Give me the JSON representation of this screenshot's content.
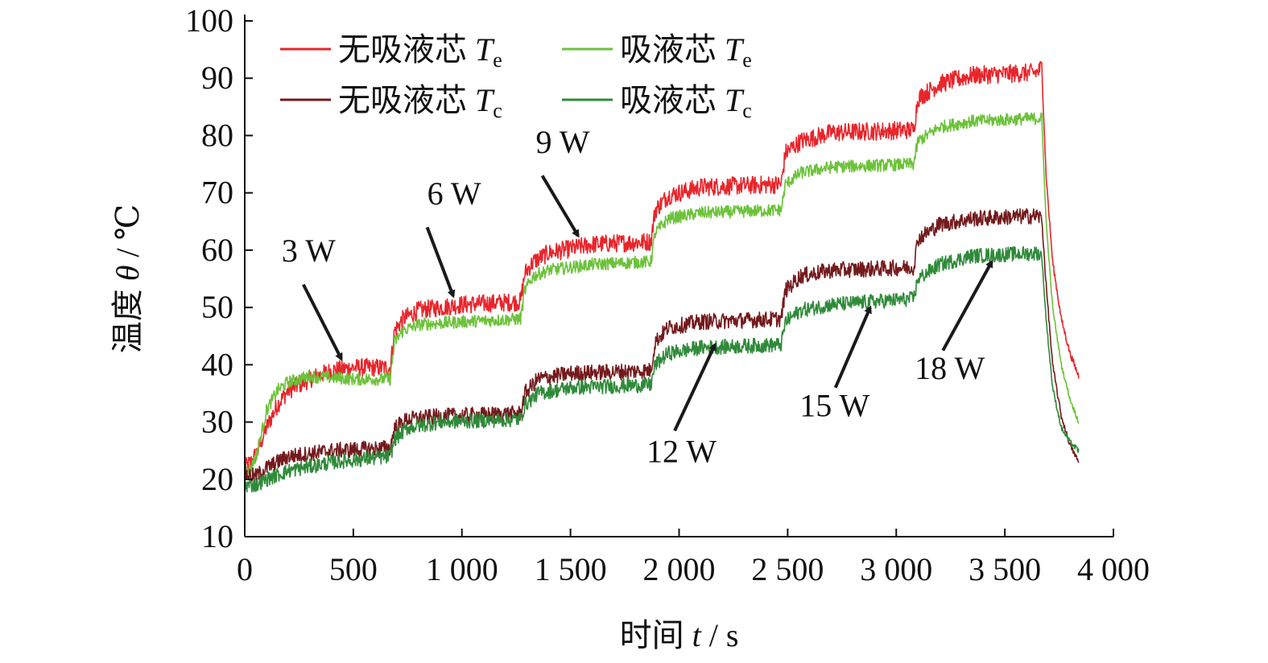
{
  "chart_data": {
    "type": "line",
    "xlabel": {
      "prefix": "时间 ",
      "var": "t",
      "suffix": " / s"
    },
    "ylabel": {
      "prefix": "温度 ",
      "var": "θ",
      "suffix": " / ℃"
    },
    "xlim": [
      0,
      4000
    ],
    "ylim": [
      10,
      100
    ],
    "x_ticks": [
      0,
      500,
      1000,
      1500,
      2000,
      2500,
      3000,
      3500,
      4000
    ],
    "x_tick_labels": [
      "0",
      "500",
      "1 000",
      "1 500",
      "2 000",
      "2 500",
      "3 000",
      "3 500",
      "4 000"
    ],
    "y_ticks": [
      10,
      20,
      30,
      40,
      50,
      60,
      70,
      80,
      90,
      100
    ],
    "y_tick_labels": [
      "10",
      "20",
      "30",
      "40",
      "50",
      "60",
      "70",
      "80",
      "90",
      "100"
    ],
    "grid": false,
    "legend_position": "top-left",
    "series": [
      {
        "name": "无吸液芯 Te",
        "label_text": "无吸液芯 ",
        "label_var": "T",
        "label_sub": "e",
        "color": "#e8252b",
        "noise": 1.6,
        "points": [
          [
            0,
            22
          ],
          [
            30,
            23
          ],
          [
            60,
            25
          ],
          [
            100,
            29
          ],
          [
            150,
            33
          ],
          [
            200,
            35.5
          ],
          [
            300,
            37.5
          ],
          [
            400,
            39
          ],
          [
            500,
            39.5
          ],
          [
            670,
            39.5
          ],
          [
            690,
            46
          ],
          [
            730,
            48
          ],
          [
            800,
            49.5
          ],
          [
            1000,
            50.5
          ],
          [
            1270,
            51
          ],
          [
            1290,
            56
          ],
          [
            1330,
            58
          ],
          [
            1400,
            59.5
          ],
          [
            1600,
            61
          ],
          [
            1870,
            61.5
          ],
          [
            1890,
            67
          ],
          [
            1950,
            69.5
          ],
          [
            2100,
            71
          ],
          [
            2470,
            71.5
          ],
          [
            2490,
            77
          ],
          [
            2560,
            79
          ],
          [
            2700,
            80.5
          ],
          [
            3080,
            81
          ],
          [
            3100,
            86.5
          ],
          [
            3200,
            89
          ],
          [
            3350,
            90.5
          ],
          [
            3650,
            91
          ],
          [
            3670,
            92
          ],
          [
            3690,
            73
          ],
          [
            3720,
            58
          ],
          [
            3760,
            48
          ],
          [
            3800,
            42
          ],
          [
            3840,
            38
          ]
        ]
      },
      {
        "name": "吸液芯 Te",
        "label_text": "吸液芯 ",
        "label_var": "T",
        "label_sub": "e",
        "color": "#6cc23a",
        "noise": 1.1,
        "points": [
          [
            0,
            21
          ],
          [
            30,
            22
          ],
          [
            60,
            25
          ],
          [
            100,
            32
          ],
          [
            150,
            35.5
          ],
          [
            200,
            37
          ],
          [
            300,
            38
          ],
          [
            500,
            37.5
          ],
          [
            670,
            37.5
          ],
          [
            690,
            44
          ],
          [
            730,
            46
          ],
          [
            800,
            47
          ],
          [
            1000,
            47.5
          ],
          [
            1270,
            48
          ],
          [
            1290,
            53
          ],
          [
            1330,
            55.5
          ],
          [
            1400,
            56.5
          ],
          [
            1600,
            57.5
          ],
          [
            1870,
            58
          ],
          [
            1890,
            63
          ],
          [
            1950,
            65.5
          ],
          [
            2100,
            66.5
          ],
          [
            2470,
            67
          ],
          [
            2490,
            71.5
          ],
          [
            2560,
            73.5
          ],
          [
            2700,
            74.5
          ],
          [
            3080,
            75
          ],
          [
            3100,
            79
          ],
          [
            3200,
            81.5
          ],
          [
            3350,
            82.5
          ],
          [
            3650,
            83
          ],
          [
            3670,
            83
          ],
          [
            3690,
            65
          ],
          [
            3720,
            50
          ],
          [
            3760,
            40
          ],
          [
            3800,
            34
          ],
          [
            3840,
            30
          ]
        ]
      },
      {
        "name": "无吸液芯 Tc",
        "label_text": "无吸液芯 ",
        "label_var": "T",
        "label_sub": "c",
        "color": "#731a1c",
        "noise": 1.4,
        "points": [
          [
            0,
            21
          ],
          [
            50,
            20.5
          ],
          [
            100,
            22
          ],
          [
            200,
            24
          ],
          [
            400,
            25
          ],
          [
            670,
            25.5
          ],
          [
            690,
            29
          ],
          [
            750,
            30.5
          ],
          [
            900,
            31
          ],
          [
            1270,
            31.5
          ],
          [
            1290,
            35
          ],
          [
            1350,
            37.5
          ],
          [
            1500,
            38.5
          ],
          [
            1870,
            39
          ],
          [
            1890,
            44
          ],
          [
            1950,
            46.5
          ],
          [
            2100,
            47.5
          ],
          [
            2470,
            48
          ],
          [
            2490,
            53
          ],
          [
            2560,
            55.5
          ],
          [
            2700,
            56.5
          ],
          [
            3080,
            57
          ],
          [
            3100,
            62
          ],
          [
            3200,
            64.5
          ],
          [
            3350,
            65.5
          ],
          [
            3650,
            66
          ],
          [
            3670,
            65.5
          ],
          [
            3690,
            54
          ],
          [
            3720,
            40
          ],
          [
            3760,
            31
          ],
          [
            3800,
            26
          ],
          [
            3840,
            23
          ]
        ]
      },
      {
        "name": "吸液芯 Tc",
        "label_text": "吸液芯 ",
        "label_var": "T",
        "label_sub": "c",
        "color": "#2f8a3a",
        "noise": 1.3,
        "points": [
          [
            0,
            19
          ],
          [
            50,
            19
          ],
          [
            100,
            20
          ],
          [
            200,
            21.5
          ],
          [
            400,
            23
          ],
          [
            670,
            24
          ],
          [
            690,
            27
          ],
          [
            750,
            29
          ],
          [
            900,
            30
          ],
          [
            1270,
            30.5
          ],
          [
            1290,
            33
          ],
          [
            1350,
            35
          ],
          [
            1500,
            36
          ],
          [
            1870,
            36.5
          ],
          [
            1890,
            40
          ],
          [
            1950,
            42
          ],
          [
            2100,
            43
          ],
          [
            2470,
            43.5
          ],
          [
            2490,
            47.5
          ],
          [
            2560,
            49.5
          ],
          [
            2700,
            50.5
          ],
          [
            3080,
            51.5
          ],
          [
            3100,
            55
          ],
          [
            3200,
            57.5
          ],
          [
            3350,
            59
          ],
          [
            3650,
            59.5
          ],
          [
            3670,
            59
          ],
          [
            3690,
            48
          ],
          [
            3720,
            36
          ],
          [
            3760,
            29
          ],
          [
            3800,
            26.5
          ],
          [
            3840,
            25
          ]
        ]
      }
    ],
    "annotations": [
      {
        "text": "3 W",
        "text_at": [
          170,
          58
        ],
        "arrow_from": [
          270,
          54
        ],
        "arrow_to": [
          445,
          41
        ]
      },
      {
        "text": "6 W",
        "text_at": [
          840,
          68
        ],
        "arrow_from": [
          840,
          64
        ],
        "arrow_to": [
          960,
          52
        ]
      },
      {
        "text": "9 W",
        "text_at": [
          1340,
          77
        ],
        "arrow_from": [
          1370,
          73
        ],
        "arrow_to": [
          1535,
          62.5
        ]
      },
      {
        "text": "12 W",
        "text_at": [
          1850,
          23
        ],
        "arrow_from": [
          1980,
          28.5
        ],
        "arrow_to": [
          2165,
          43.5
        ]
      },
      {
        "text": "15 W",
        "text_at": [
          2555,
          31
        ],
        "arrow_from": [
          2720,
          36
        ],
        "arrow_to": [
          2880,
          50
        ]
      },
      {
        "text": "18 W",
        "text_at": [
          3085,
          37.5
        ],
        "arrow_from": [
          3215,
          42.5
        ],
        "arrow_to": [
          3440,
          58
        ]
      }
    ]
  }
}
